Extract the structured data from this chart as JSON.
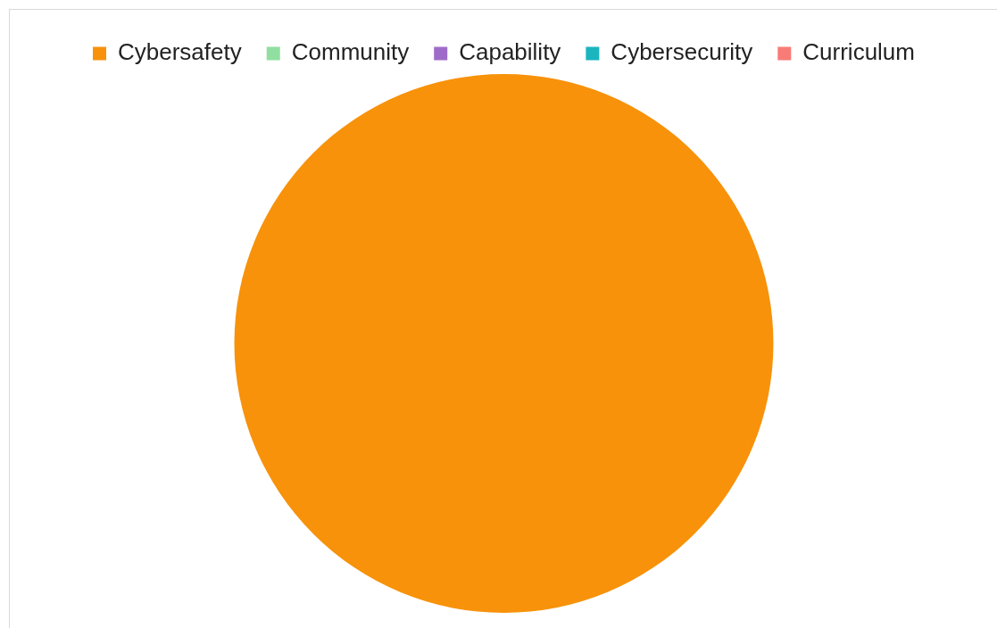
{
  "chart_data": {
    "type": "pie",
    "categories": [
      "Cybersafety",
      "Community",
      "Capability",
      "Cybersecurity",
      "Curriculum"
    ],
    "values": [
      100,
      0,
      0,
      0,
      0
    ],
    "colors": [
      "#f7920a",
      "#90dfa0",
      "#9e6cc8",
      "#1bb5bf",
      "#f97b77"
    ],
    "legend": "top"
  }
}
